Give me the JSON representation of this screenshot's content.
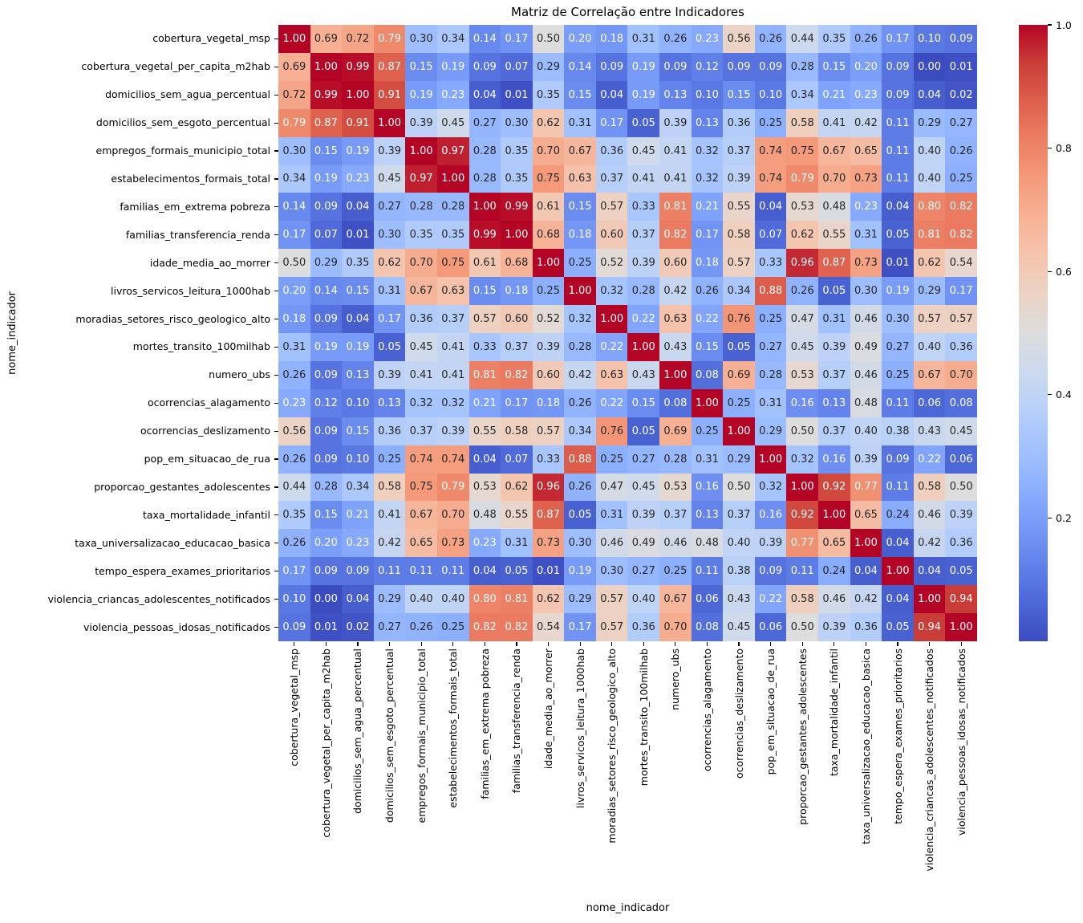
{
  "chart_data": {
    "type": "heatmap",
    "title": "Matriz de Correlação entre Indicadores",
    "xlabel": "nome_indicador",
    "ylabel": "nome_indicador",
    "colormap": "coolwarm",
    "vmin": 0.0,
    "vmax": 1.0,
    "grid": false,
    "annot_format": "0.00",
    "categories": [
      "cobertura_vegetal_msp",
      "cobertura_vegetal_per_capita_m2hab",
      "domicilios_sem_agua_percentual",
      "domicilios_sem_esgoto_percentual",
      "empregos_formais_municipio_total",
      "estabelecimentos_formais_total",
      "familias_em_extrema pobreza",
      "familias_transferencia_renda",
      "idade_media_ao_morrer",
      "livros_servicos_leitura_1000hab",
      "moradias_setores_risco_geologico_alto",
      "mortes_transito_100milhab",
      "numero_ubs",
      "ocorrencias_alagamento",
      "ocorrencias_deslizamento",
      "pop_em_situacao_de_rua",
      "proporcao_gestantes_adolescentes",
      "taxa_mortalidade_infantil",
      "taxa_universalizacao_educacao_basica",
      "tempo_espera_exames_prioritarios",
      "violencia_criancas_adolescentes_notificados",
      "violencia_pessoas_idosas_notificados"
    ],
    "matrix": [
      [
        1.0,
        0.69,
        0.72,
        0.79,
        0.3,
        0.34,
        0.14,
        0.17,
        0.5,
        0.2,
        0.18,
        0.31,
        0.26,
        0.23,
        0.56,
        0.26,
        0.44,
        0.35,
        0.26,
        0.17,
        0.1,
        0.09
      ],
      [
        0.69,
        1.0,
        0.99,
        0.87,
        0.15,
        0.19,
        0.09,
        0.07,
        0.29,
        0.14,
        0.09,
        0.19,
        0.09,
        0.12,
        0.09,
        0.09,
        0.28,
        0.15,
        0.2,
        0.09,
        0.0,
        0.01
      ],
      [
        0.72,
        0.99,
        1.0,
        0.91,
        0.19,
        0.23,
        0.04,
        0.01,
        0.35,
        0.15,
        0.04,
        0.19,
        0.13,
        0.1,
        0.15,
        0.1,
        0.34,
        0.21,
        0.23,
        0.09,
        0.04,
        0.02
      ],
      [
        0.79,
        0.87,
        0.91,
        1.0,
        0.39,
        0.45,
        0.27,
        0.3,
        0.62,
        0.31,
        0.17,
        0.05,
        0.39,
        0.13,
        0.36,
        0.25,
        0.58,
        0.41,
        0.42,
        0.11,
        0.29,
        0.27
      ],
      [
        0.3,
        0.15,
        0.19,
        0.39,
        1.0,
        0.97,
        0.28,
        0.35,
        0.7,
        0.67,
        0.36,
        0.45,
        0.41,
        0.32,
        0.37,
        0.74,
        0.75,
        0.67,
        0.65,
        0.11,
        0.4,
        0.26
      ],
      [
        0.34,
        0.19,
        0.23,
        0.45,
        0.97,
        1.0,
        0.28,
        0.35,
        0.75,
        0.63,
        0.37,
        0.41,
        0.41,
        0.32,
        0.39,
        0.74,
        0.79,
        0.7,
        0.73,
        0.11,
        0.4,
        0.25
      ],
      [
        0.14,
        0.09,
        0.04,
        0.27,
        0.28,
        0.28,
        1.0,
        0.99,
        0.61,
        0.15,
        0.57,
        0.33,
        0.81,
        0.21,
        0.55,
        0.04,
        0.53,
        0.48,
        0.23,
        0.04,
        0.8,
        0.82
      ],
      [
        0.17,
        0.07,
        0.01,
        0.3,
        0.35,
        0.35,
        0.99,
        1.0,
        0.68,
        0.18,
        0.6,
        0.37,
        0.82,
        0.17,
        0.58,
        0.07,
        0.62,
        0.55,
        0.31,
        0.05,
        0.81,
        0.82
      ],
      [
        0.5,
        0.29,
        0.35,
        0.62,
        0.7,
        0.75,
        0.61,
        0.68,
        1.0,
        0.25,
        0.52,
        0.39,
        0.6,
        0.18,
        0.57,
        0.33,
        0.96,
        0.87,
        0.73,
        0.01,
        0.62,
        0.54
      ],
      [
        0.2,
        0.14,
        0.15,
        0.31,
        0.67,
        0.63,
        0.15,
        0.18,
        0.25,
        1.0,
        0.32,
        0.28,
        0.42,
        0.26,
        0.34,
        0.88,
        0.26,
        0.05,
        0.3,
        0.19,
        0.29,
        0.17
      ],
      [
        0.18,
        0.09,
        0.04,
        0.17,
        0.36,
        0.37,
        0.57,
        0.6,
        0.52,
        0.32,
        1.0,
        0.22,
        0.63,
        0.22,
        0.76,
        0.25,
        0.47,
        0.31,
        0.46,
        0.3,
        0.57,
        0.57
      ],
      [
        0.31,
        0.19,
        0.19,
        0.05,
        0.45,
        0.41,
        0.33,
        0.37,
        0.39,
        0.28,
        0.22,
        1.0,
        0.43,
        0.15,
        0.05,
        0.27,
        0.45,
        0.39,
        0.49,
        0.27,
        0.4,
        0.36
      ],
      [
        0.26,
        0.09,
        0.13,
        0.39,
        0.41,
        0.41,
        0.81,
        0.82,
        0.6,
        0.42,
        0.63,
        0.43,
        1.0,
        0.08,
        0.69,
        0.28,
        0.53,
        0.37,
        0.46,
        0.25,
        0.67,
        0.7
      ],
      [
        0.23,
        0.12,
        0.1,
        0.13,
        0.32,
        0.32,
        0.21,
        0.17,
        0.18,
        0.26,
        0.22,
        0.15,
        0.08,
        1.0,
        0.25,
        0.31,
        0.16,
        0.13,
        0.48,
        0.11,
        0.06,
        0.08
      ],
      [
        0.56,
        0.09,
        0.15,
        0.36,
        0.37,
        0.39,
        0.55,
        0.58,
        0.57,
        0.34,
        0.76,
        0.05,
        0.69,
        0.25,
        1.0,
        0.29,
        0.5,
        0.37,
        0.4,
        0.38,
        0.43,
        0.45
      ],
      [
        0.26,
        0.09,
        0.1,
        0.25,
        0.74,
        0.74,
        0.04,
        0.07,
        0.33,
        0.88,
        0.25,
        0.27,
        0.28,
        0.31,
        0.29,
        1.0,
        0.32,
        0.16,
        0.39,
        0.09,
        0.22,
        0.06
      ],
      [
        0.44,
        0.28,
        0.34,
        0.58,
        0.75,
        0.79,
        0.53,
        0.62,
        0.96,
        0.26,
        0.47,
        0.45,
        0.53,
        0.16,
        0.5,
        0.32,
        1.0,
        0.92,
        0.77,
        0.11,
        0.58,
        0.5
      ],
      [
        0.35,
        0.15,
        0.21,
        0.41,
        0.67,
        0.7,
        0.48,
        0.55,
        0.87,
        0.05,
        0.31,
        0.39,
        0.37,
        0.13,
        0.37,
        0.16,
        0.92,
        1.0,
        0.65,
        0.24,
        0.46,
        0.39
      ],
      [
        0.26,
        0.2,
        0.23,
        0.42,
        0.65,
        0.73,
        0.23,
        0.31,
        0.73,
        0.3,
        0.46,
        0.49,
        0.46,
        0.48,
        0.4,
        0.39,
        0.77,
        0.65,
        1.0,
        0.04,
        0.42,
        0.36
      ],
      [
        0.17,
        0.09,
        0.09,
        0.11,
        0.11,
        0.11,
        0.04,
        0.05,
        0.01,
        0.19,
        0.3,
        0.27,
        0.25,
        0.11,
        0.38,
        0.09,
        0.11,
        0.24,
        0.04,
        1.0,
        0.04,
        0.05
      ],
      [
        0.1,
        0.0,
        0.04,
        0.29,
        0.4,
        0.4,
        0.8,
        0.81,
        0.62,
        0.29,
        0.57,
        0.4,
        0.67,
        0.06,
        0.43,
        0.22,
        0.58,
        0.46,
        0.42,
        0.04,
        1.0,
        0.94
      ],
      [
        0.09,
        0.01,
        0.02,
        0.27,
        0.26,
        0.25,
        0.82,
        0.82,
        0.54,
        0.17,
        0.57,
        0.36,
        0.7,
        0.08,
        0.45,
        0.06,
        0.5,
        0.39,
        0.36,
        0.05,
        0.94,
        1.0
      ]
    ],
    "colorbar": {
      "position": "right",
      "tick_labels": [
        "1.0",
        "0.8",
        "0.6",
        "0.4",
        "0.2"
      ],
      "tick_values": [
        1.0,
        0.8,
        0.6,
        0.4,
        0.2
      ]
    },
    "colormap_anchors": [
      {
        "t": 0.0,
        "hex": "#3B4CC0"
      },
      {
        "t": 0.0625,
        "hex": "#4D68D7"
      },
      {
        "t": 0.125,
        "hex": "#6282EA"
      },
      {
        "t": 0.1875,
        "hex": "#779AF7"
      },
      {
        "t": 0.25,
        "hex": "#8DB0FE"
      },
      {
        "t": 0.3125,
        "hex": "#A3C2FF"
      },
      {
        "t": 0.375,
        "hex": "#B8D0F9"
      },
      {
        "t": 0.4375,
        "hex": "#CCD9EE"
      },
      {
        "t": 0.5,
        "hex": "#DDDDDD"
      },
      {
        "t": 0.5625,
        "hex": "#ECD3C5"
      },
      {
        "t": 0.625,
        "hex": "#F5C4AD"
      },
      {
        "t": 0.6875,
        "hex": "#F7B194"
      },
      {
        "t": 0.75,
        "hex": "#F49A7B"
      },
      {
        "t": 0.8125,
        "hex": "#EC7F63"
      },
      {
        "t": 0.875,
        "hex": "#DE604D"
      },
      {
        "t": 0.9375,
        "hex": "#CB3E38"
      },
      {
        "t": 1.0,
        "hex": "#B40426"
      }
    ],
    "annot_text_colors": {
      "dark": "#262626",
      "light": "#ffffff"
    }
  }
}
